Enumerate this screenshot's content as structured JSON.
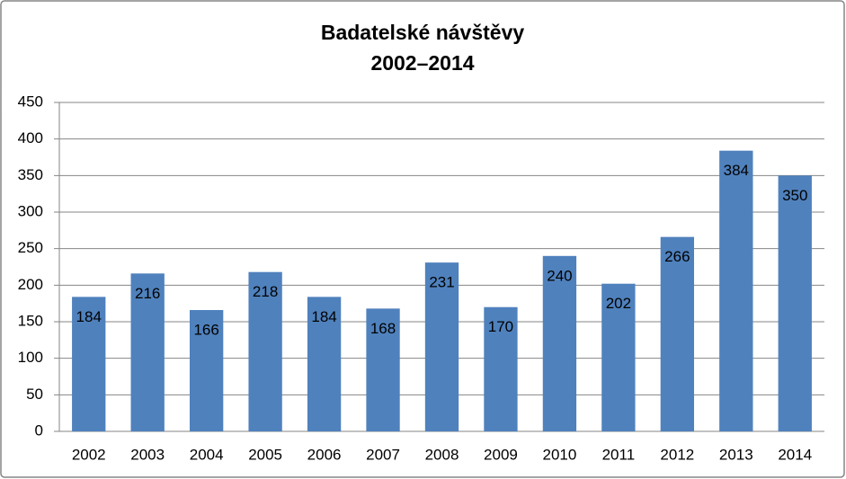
{
  "chart_data": {
    "type": "bar",
    "title": [
      "Badatelské návštěvy",
      "2002–2014"
    ],
    "categories": [
      "2002",
      "2003",
      "2004",
      "2005",
      "2006",
      "2007",
      "2008",
      "2009",
      "2010",
      "2011",
      "2012",
      "2013",
      "2014"
    ],
    "values": [
      184,
      216,
      166,
      218,
      184,
      168,
      231,
      170,
      240,
      202,
      266,
      384,
      350
    ],
    "color": "#4f81bd",
    "ylim": [
      0,
      450
    ],
    "yticks": [
      0,
      50,
      100,
      150,
      200,
      250,
      300,
      350,
      400,
      450
    ],
    "grid": true
  }
}
